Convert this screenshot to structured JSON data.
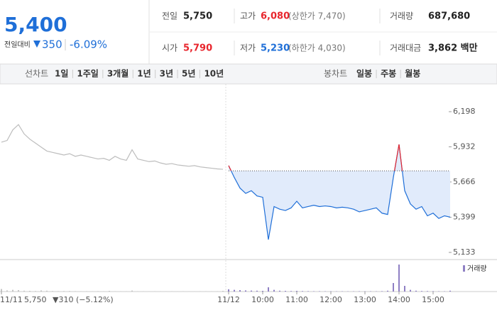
{
  "header": {
    "price": "5,400",
    "change_label": "전일대비",
    "change": "350",
    "change_pct": "-6.09%",
    "stats": [
      [
        {
          "label": "전일",
          "value": "5,750"
        },
        {
          "label": "고가",
          "value": "6,080",
          "note": "(상한가 7,470)"
        },
        {
          "label": "거래량",
          "value": "687,680"
        }
      ],
      [
        {
          "label": "시가",
          "value": "5,790"
        },
        {
          "label": "저가",
          "value": "5,230",
          "note": "(하한가 4,030)"
        },
        {
          "label": "거래대금",
          "value": "3,862 백만"
        }
      ]
    ]
  },
  "tabs": {
    "line_label": "선차트",
    "periods": [
      "1일",
      "1주일",
      "3개월",
      "1년",
      "3년",
      "5년",
      "10년"
    ],
    "candle_label": "봉차트",
    "candle_periods": [
      "일봉",
      "주봉",
      "월봉"
    ]
  },
  "chart_data": {
    "type": "line",
    "categories": [
      "11/11",
      null,
      null,
      null,
      null,
      null,
      null,
      null,
      null,
      null,
      null,
      null,
      null,
      null,
      null,
      null,
      null,
      null,
      null,
      null,
      null,
      null,
      null,
      null,
      null,
      null,
      null,
      null,
      null,
      null,
      null,
      null,
      null,
      null,
      null,
      null,
      null,
      null,
      null,
      null,
      "11/12",
      null,
      null,
      null,
      null,
      null,
      "10:00",
      null,
      null,
      null,
      null,
      null,
      "11:00",
      null,
      null,
      null,
      null,
      null,
      "12:00",
      null,
      null,
      null,
      null,
      null,
      "13:00",
      null,
      null,
      null,
      null,
      null,
      "14:00",
      null,
      null,
      null,
      null,
      null,
      "15:00",
      null,
      null,
      null
    ],
    "prev_summary": {
      "close": "5,750",
      "change": "▼310 (−5.12%)"
    },
    "series": [
      {
        "color": "#bdbdbd",
        "values": [
          5967,
          5980,
          6060,
          6100,
          6030,
          5990,
          5960,
          5930,
          5900,
          5890,
          5880,
          5870,
          5880,
          5860,
          5870,
          5860,
          5850,
          5840,
          5845,
          5830,
          5860,
          5840,
          5830,
          5910,
          5840,
          5830,
          5820,
          5825,
          5810,
          5800,
          5805,
          5795,
          5790,
          5785,
          5790,
          5780,
          5775,
          5770,
          5765,
          5762,
          null,
          null,
          null,
          null,
          null,
          null,
          null,
          null,
          null,
          null,
          null,
          null,
          null,
          null,
          null,
          null,
          null,
          null,
          null,
          null,
          null,
          null,
          null,
          null,
          null,
          null,
          null,
          null,
          null,
          null,
          null,
          null,
          null,
          null,
          null,
          null,
          null,
          null,
          null,
          null
        ]
      },
      {
        "color": "#1f6fd8",
        "fill": "#e1ebfb",
        "values": [
          null,
          null,
          null,
          null,
          null,
          null,
          null,
          null,
          null,
          null,
          null,
          null,
          null,
          null,
          null,
          null,
          null,
          null,
          null,
          null,
          null,
          null,
          null,
          null,
          null,
          null,
          null,
          null,
          null,
          null,
          null,
          null,
          null,
          null,
          null,
          null,
          null,
          null,
          null,
          null,
          5790,
          5700,
          5620,
          5580,
          5600,
          5560,
          5550,
          5230,
          5480,
          5460,
          5450,
          5470,
          5520,
          5470,
          5480,
          5490,
          5480,
          5485,
          5480,
          5470,
          5475,
          5470,
          5460,
          5440,
          5450,
          5460,
          5470,
          5430,
          5420,
          5700,
          5950,
          5600,
          5500,
          5460,
          5480,
          5410,
          5430,
          5390,
          5410,
          5400
        ]
      }
    ],
    "reference": 5750,
    "above_reference_color": "#e8262d",
    "ylim": [
      5079,
      6408
    ],
    "yticks": [
      {
        "value": 6198,
        "label": "6,198"
      },
      {
        "value": 5932,
        "label": "5,932"
      },
      {
        "value": 5666,
        "label": "5,666"
      },
      {
        "value": 5399,
        "label": "5,399"
      },
      {
        "value": 5133,
        "label": "5,133"
      }
    ],
    "volume": {
      "label": "거래량",
      "ylim": [
        0,
        100000
      ],
      "series": [
        {
          "color": "#c4c4c4",
          "values": [
            9000,
            4000,
            6000,
            5000,
            3000,
            2500,
            2000,
            4000,
            3000,
            2000,
            1500,
            1800,
            2000,
            1500,
            1200,
            1400,
            1000,
            1500,
            1200,
            2500,
            1000,
            1200,
            900,
            3500,
            1100,
            1000,
            800,
            900,
            1000,
            700,
            900,
            800,
            1200,
            700,
            800,
            900,
            1000,
            1100,
            1300,
            2500,
            null,
            null,
            null,
            null,
            null,
            null,
            null,
            null,
            null,
            null,
            null,
            null,
            null,
            null,
            null,
            null,
            null,
            null,
            null,
            null,
            null,
            null,
            null,
            null,
            null,
            null,
            null,
            null,
            null,
            null,
            null,
            null,
            null,
            null,
            null,
            null,
            null,
            null,
            null,
            null
          ]
        },
        {
          "color": "#8f80c4",
          "values": [
            null,
            null,
            null,
            null,
            null,
            null,
            null,
            null,
            null,
            null,
            null,
            null,
            null,
            null,
            null,
            null,
            null,
            null,
            null,
            null,
            null,
            null,
            null,
            null,
            null,
            null,
            null,
            null,
            null,
            null,
            null,
            null,
            null,
            null,
            null,
            null,
            null,
            null,
            null,
            null,
            8000,
            6000,
            5000,
            4000,
            3500,
            3000,
            2500,
            15000,
            6000,
            3000,
            2500,
            2000,
            2500,
            1800,
            1500,
            1200,
            1300,
            1000,
            1100,
            900,
            1000,
            800,
            900,
            1200,
            1000,
            1100,
            900,
            1500,
            3000,
            30000,
            95000,
            20000,
            6000,
            3000,
            2000,
            1800,
            1500,
            1200,
            1000,
            3000
          ]
        }
      ]
    }
  }
}
